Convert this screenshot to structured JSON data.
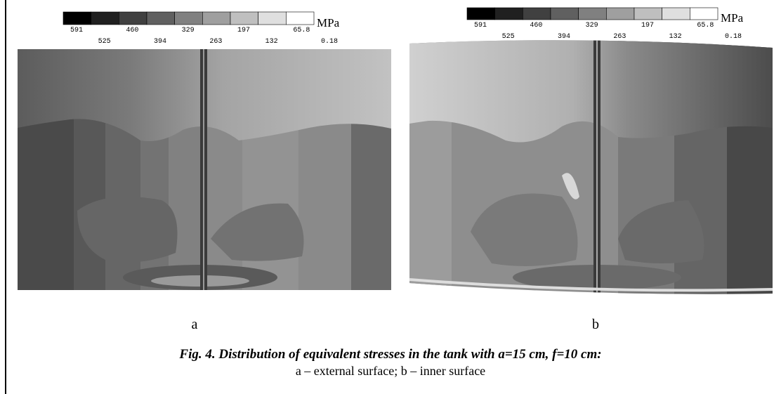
{
  "figures": [
    {
      "label": "a",
      "colorbar": {
        "labels": [
          "591",
          "525",
          "460",
          "394",
          "329",
          "263",
          "197",
          "132",
          "65.8",
          "0.18"
        ],
        "unit": "MPa"
      }
    },
    {
      "label": "b",
      "colorbar": {
        "labels": [
          "591",
          "525",
          "460",
          "394",
          "329",
          "263",
          "197",
          "132",
          "65.8",
          "0.18"
        ],
        "unit": "MPa"
      }
    }
  ],
  "caption": {
    "title": "Fig. 4. Distribution of equivalent stresses in the tank with a=15 cm, f=10 cm:",
    "text": "a – external surface; b – inner surface"
  }
}
